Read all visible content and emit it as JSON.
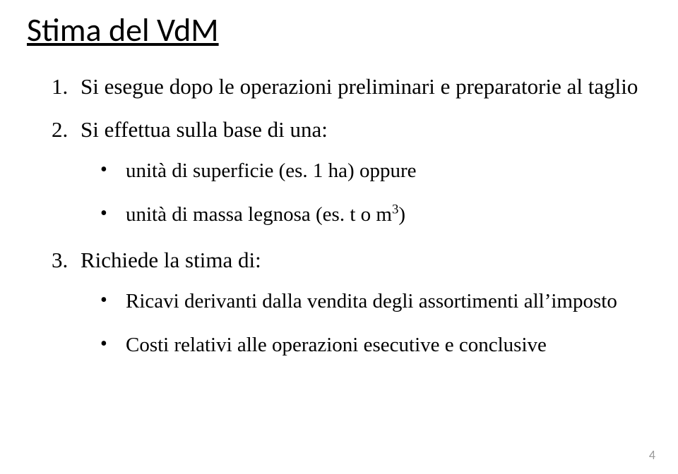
{
  "title": "Stima del VdM",
  "items": {
    "one": {
      "text": "Si esegue dopo le operazioni preliminari e preparatorie al taglio"
    },
    "two": {
      "text": "Si effettua sulla base di una:",
      "sub": {
        "a": "unità di superficie (es. 1 ha) oppure",
        "b_html": "unità di massa legnosa (es. t o m<sup>3</sup>)"
      }
    },
    "three": {
      "text": "Richiede la stima di:",
      "sub": {
        "a": "Ricavi derivanti dalla vendita degli assortimenti all’imposto",
        "b": "Costi relativi alle operazioni esecutive e conclusive"
      }
    }
  },
  "page_number": "4",
  "colors": {
    "background": "#ffffff",
    "text": "#000000",
    "pagenum": "#9a9a9a"
  },
  "fonts": {
    "title_family": "Calibri",
    "body_family": "Times New Roman",
    "title_size_pt": 34,
    "body_size_pt": 23,
    "sub_size_pt": 22
  }
}
